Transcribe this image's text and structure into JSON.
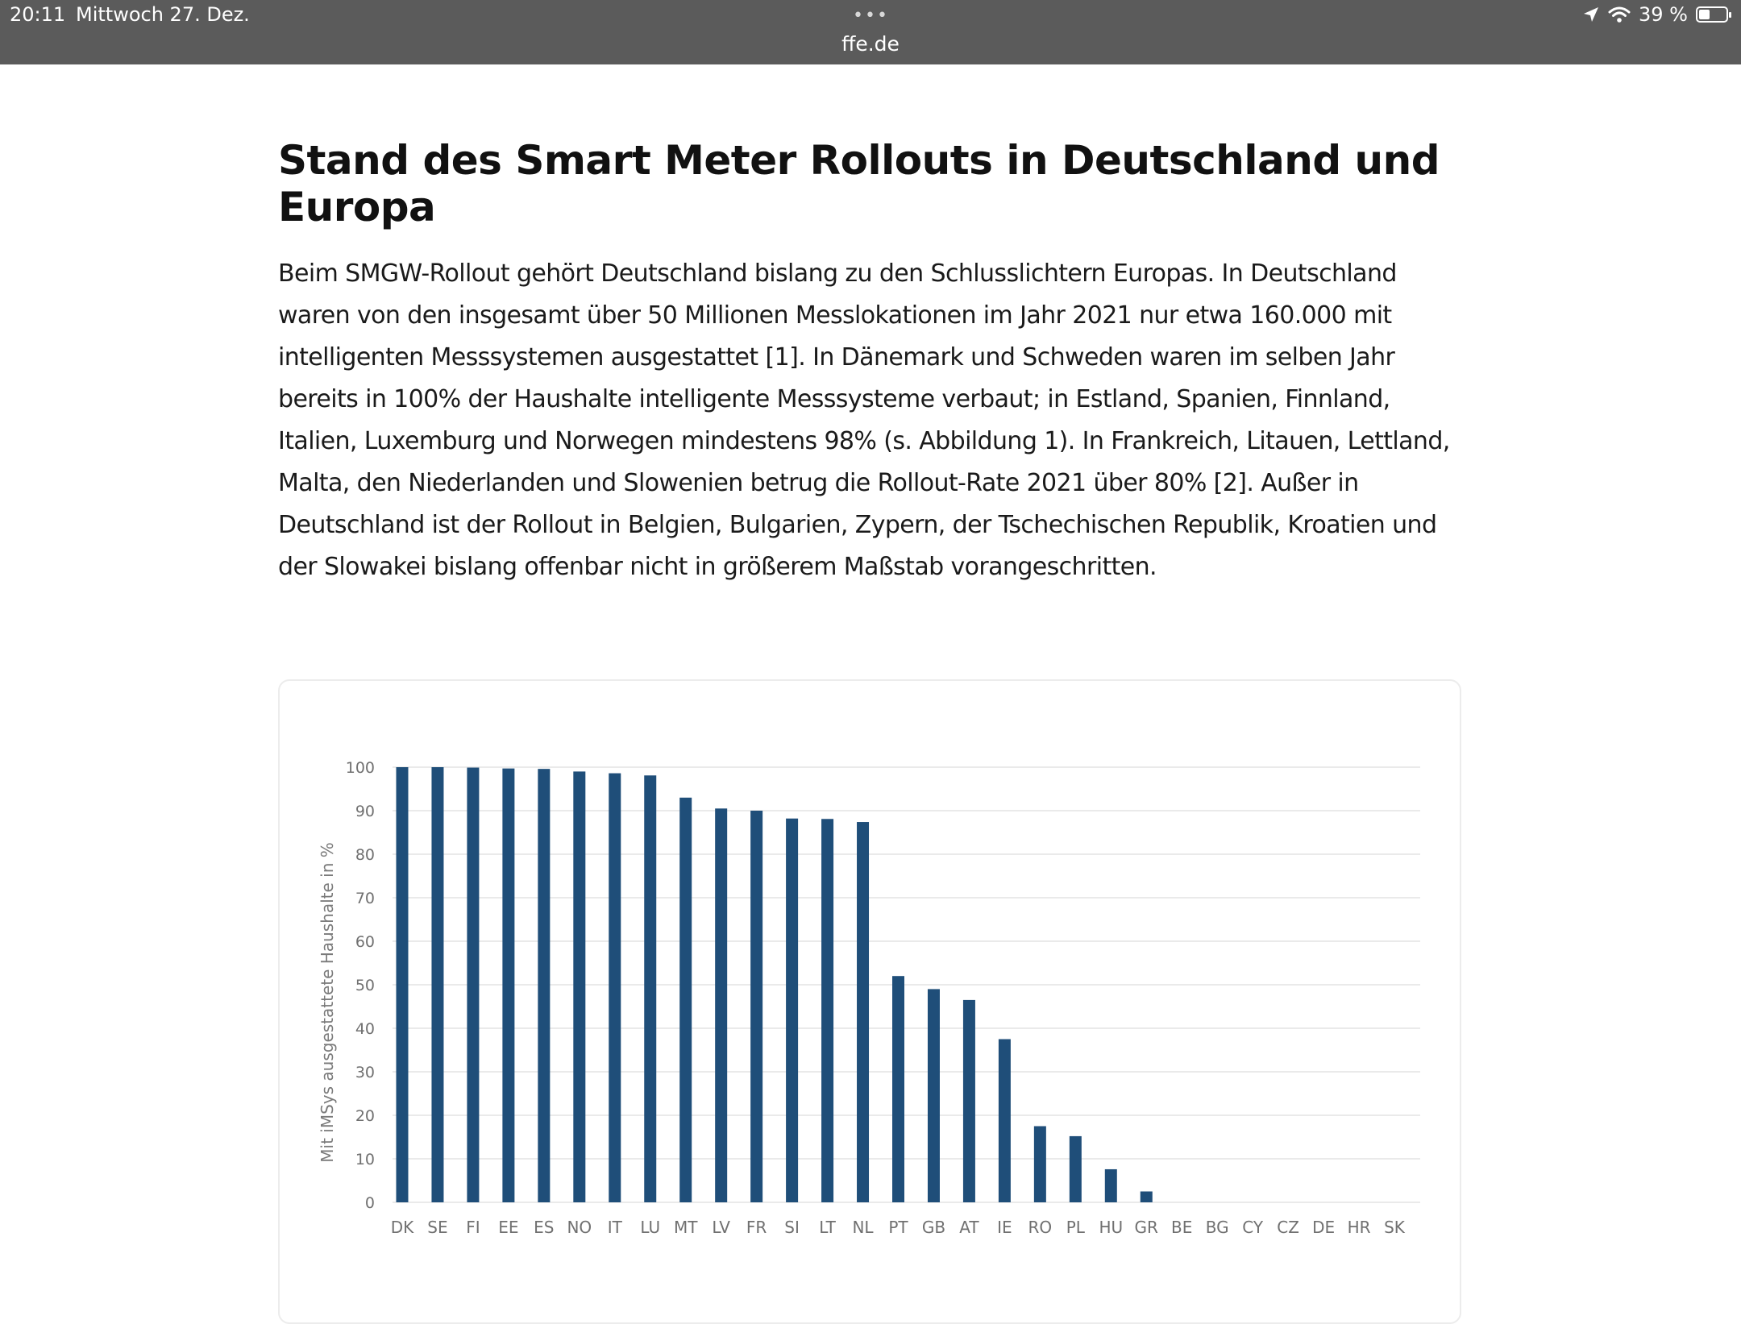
{
  "status_bar": {
    "time": "20:11",
    "date": "Mittwoch 27. Dez.",
    "url": "ffe.de",
    "battery": "39 %"
  },
  "article": {
    "title": "Stand des Smart Meter Rollouts in Deutschland und Europa",
    "paragraph": "Beim SMGW-Rollout gehört Deutschland bislang zu den Schlusslichtern Europas. In Deutschland waren von den insgesamt über 50 Millionen Messlokationen im Jahr 2021 nur etwa 160.000 mit intelligenten Messsystemen ausgestattet [1]. In Dänemark und Schweden waren im selben Jahr bereits in 100% der Haushalte intelligente Messsysteme verbaut; in Estland, Spanien, Finnland, Italien, Luxemburg und Norwegen mindestens 98% (s. Abbildung 1). In Frankreich, Litauen, Lettland, Malta, den Niederlanden und Slowenien betrug die Rollout-Rate 2021 über 80% [2]. Außer in Deutschland ist der Rollout in Belgien, Bulgarien, Zypern, der Tschechischen Republik, Kroatien und der Slowakei bislang offenbar nicht in größerem Maßstab vorangeschritten."
  },
  "colors": {
    "bar": "#1f4e79",
    "grid": "#e3e3e3",
    "status_bg": "#5b5b5b"
  },
  "chart_data": {
    "type": "bar",
    "title": "",
    "xlabel": "",
    "ylabel": "Mit iMSys ausgestattete Haushalte in %",
    "ylim": [
      0,
      100
    ],
    "yticks": [
      0,
      10,
      20,
      30,
      40,
      50,
      60,
      70,
      80,
      90,
      100
    ],
    "grid": true,
    "categories": [
      "DK",
      "SE",
      "FI",
      "EE",
      "ES",
      "NO",
      "IT",
      "LU",
      "MT",
      "LV",
      "FR",
      "SI",
      "LT",
      "NL",
      "PT",
      "GB",
      "AT",
      "IE",
      "RO",
      "PL",
      "HU",
      "GR",
      "BE",
      "BG",
      "CY",
      "CZ",
      "DE",
      "HR",
      "SK"
    ],
    "values": [
      100,
      100,
      99.9,
      99.7,
      99.6,
      99,
      98.6,
      98.1,
      93,
      90.5,
      90,
      88.2,
      88.1,
      87.4,
      52,
      49,
      46.5,
      37.5,
      17.5,
      15.2,
      7.6,
      2.5,
      0,
      0,
      0,
      0,
      0,
      0,
      0
    ]
  }
}
